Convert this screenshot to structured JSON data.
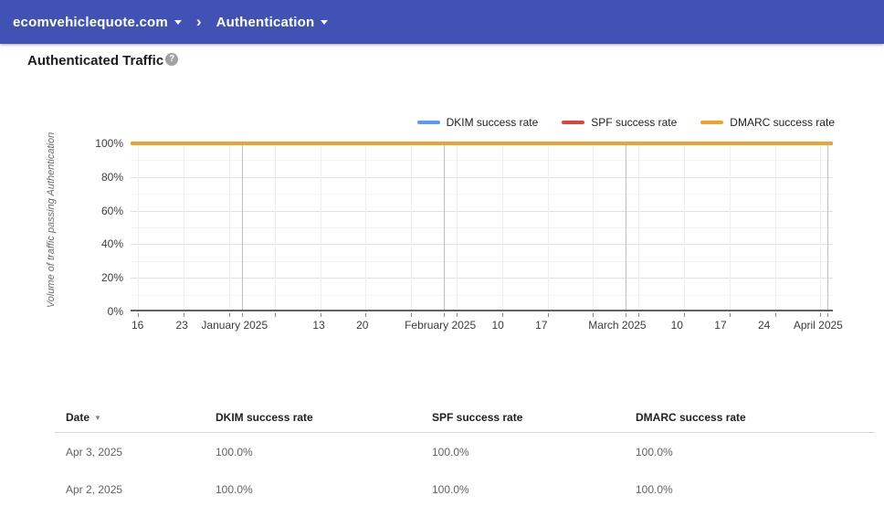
{
  "topbar": {
    "domain_label": "ecomvehiclequote.com",
    "separator": "›",
    "section_label": "Authentication",
    "bg_color": "#4053b4"
  },
  "page": {
    "title": "Authenticated Traffic",
    "help_glyph": "?"
  },
  "chart_data": {
    "type": "line",
    "title": "Authenticated Traffic",
    "ylabel": "Volume of traffic passing Authentication",
    "ylim": [
      0,
      100
    ],
    "y_tick_labels": [
      "100%",
      "80%",
      "60%",
      "40%",
      "20%",
      "0%"
    ],
    "y_tick_values": [
      100,
      80,
      60,
      40,
      20,
      0
    ],
    "grid": true,
    "legend_position": "top-right",
    "x_range": [
      "Dec 16",
      "April 2025"
    ],
    "x_tick_labels": [
      {
        "label": "16",
        "pos": 1.0
      },
      {
        "label": "23",
        "pos": 7.3
      },
      {
        "label": "January 2025",
        "pos": 14.8
      },
      {
        "label": "13",
        "pos": 26.8
      },
      {
        "label": "20",
        "pos": 33.0
      },
      {
        "label": "February 2025",
        "pos": 44.1
      },
      {
        "label": "10",
        "pos": 52.3
      },
      {
        "label": "17",
        "pos": 58.5
      },
      {
        "label": "March 2025",
        "pos": 69.3
      },
      {
        "label": "10",
        "pos": 77.8
      },
      {
        "label": "17",
        "pos": 84.0
      },
      {
        "label": "24",
        "pos": 90.2
      },
      {
        "label": "April 2025",
        "pos": 97.9
      }
    ],
    "v_gridlines": [
      {
        "pos": 1.0,
        "major": false
      },
      {
        "pos": 7.5,
        "major": false
      },
      {
        "pos": 14.0,
        "major": false
      },
      {
        "pos": 15.9,
        "major": true
      },
      {
        "pos": 20.5,
        "major": false
      },
      {
        "pos": 27.0,
        "major": false
      },
      {
        "pos": 33.4,
        "major": false
      },
      {
        "pos": 39.9,
        "major": false
      },
      {
        "pos": 44.6,
        "major": true
      },
      {
        "pos": 46.4,
        "major": false
      },
      {
        "pos": 52.9,
        "major": false
      },
      {
        "pos": 59.4,
        "major": false
      },
      {
        "pos": 65.8,
        "major": false
      },
      {
        "pos": 70.5,
        "major": true
      },
      {
        "pos": 72.3,
        "major": false
      },
      {
        "pos": 78.8,
        "major": false
      },
      {
        "pos": 85.3,
        "major": false
      },
      {
        "pos": 91.8,
        "major": false
      },
      {
        "pos": 98.2,
        "major": false
      },
      {
        "pos": 99.2,
        "major": true
      }
    ],
    "series": [
      {
        "name": "DKIM success rate",
        "color": "#5e97f6",
        "values_percent": [
          100,
          100,
          100,
          100,
          100,
          100,
          100,
          100,
          100,
          100,
          100,
          100,
          100
        ]
      },
      {
        "name": "SPF success rate",
        "color": "#db4437",
        "values_percent": [
          100,
          100,
          100,
          100,
          100,
          100,
          100,
          100,
          100,
          100,
          100,
          100,
          100
        ]
      },
      {
        "name": "DMARC success rate",
        "color": "#f0a12e",
        "values_percent": [
          100,
          100,
          100,
          100,
          100,
          100,
          100,
          100,
          100,
          100,
          100,
          100,
          100
        ]
      }
    ]
  },
  "table": {
    "sort_icon": "▼",
    "columns": [
      "Date",
      "DKIM success rate",
      "SPF success rate",
      "DMARC success rate"
    ],
    "rows": [
      [
        "Apr 3, 2025",
        "100.0%",
        "100.0%",
        "100.0%"
      ],
      [
        "Apr 2, 2025",
        "100.0%",
        "100.0%",
        "100.0%"
      ]
    ]
  }
}
